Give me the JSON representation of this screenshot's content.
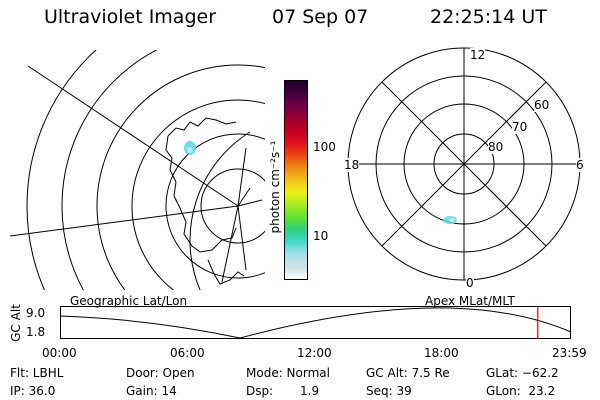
{
  "header": {
    "instrument": "Ultraviolet Imager",
    "date": "07 Sep 07",
    "time": "22:25:14 UT"
  },
  "colorbar": {
    "unit_label": "photon cm⁻²s⁻¹",
    "ticks": [
      "100",
      "10"
    ],
    "colors": [
      "#ffffff",
      "#cfe3ea",
      "#9fe0e6",
      "#40d8c8",
      "#30d080",
      "#60e030",
      "#b0ec20",
      "#f0f010",
      "#f4c020",
      "#f08c10",
      "#ee4014",
      "#e01020",
      "#c40020",
      "#9c0030",
      "#6c0048",
      "#40003c",
      "#1a0028"
    ]
  },
  "polar_plot": {
    "mlt_labels": [
      "12",
      "18",
      "6",
      "0"
    ],
    "mlat_labels": [
      "60",
      "70",
      "80"
    ]
  },
  "timeline": {
    "left_title": "Geographic Lat/Lon",
    "right_title": "Apex MLat/MLT",
    "axis_label": "GC Alt",
    "y_ticks": [
      "9.0",
      "1.8"
    ],
    "x_ticks": [
      "00:00",
      "06:00",
      "12:00",
      "18:00",
      "23:59"
    ],
    "current_time_fraction": 0.935,
    "marker_color": "#e00000"
  },
  "status": {
    "filter": "Flt: LBHL",
    "ip": "IP: 36.0",
    "door": "Door: Open",
    "gain": "Gain: 14",
    "mode": "Mode: Normal",
    "dsp_label": "Dsp:",
    "dsp_value": "1.9",
    "gc_alt": "GC Alt: 7.5 Re",
    "seq": "Seq: 39",
    "glat": "GLat: −62.2",
    "glon": "GLon:  23.2"
  }
}
